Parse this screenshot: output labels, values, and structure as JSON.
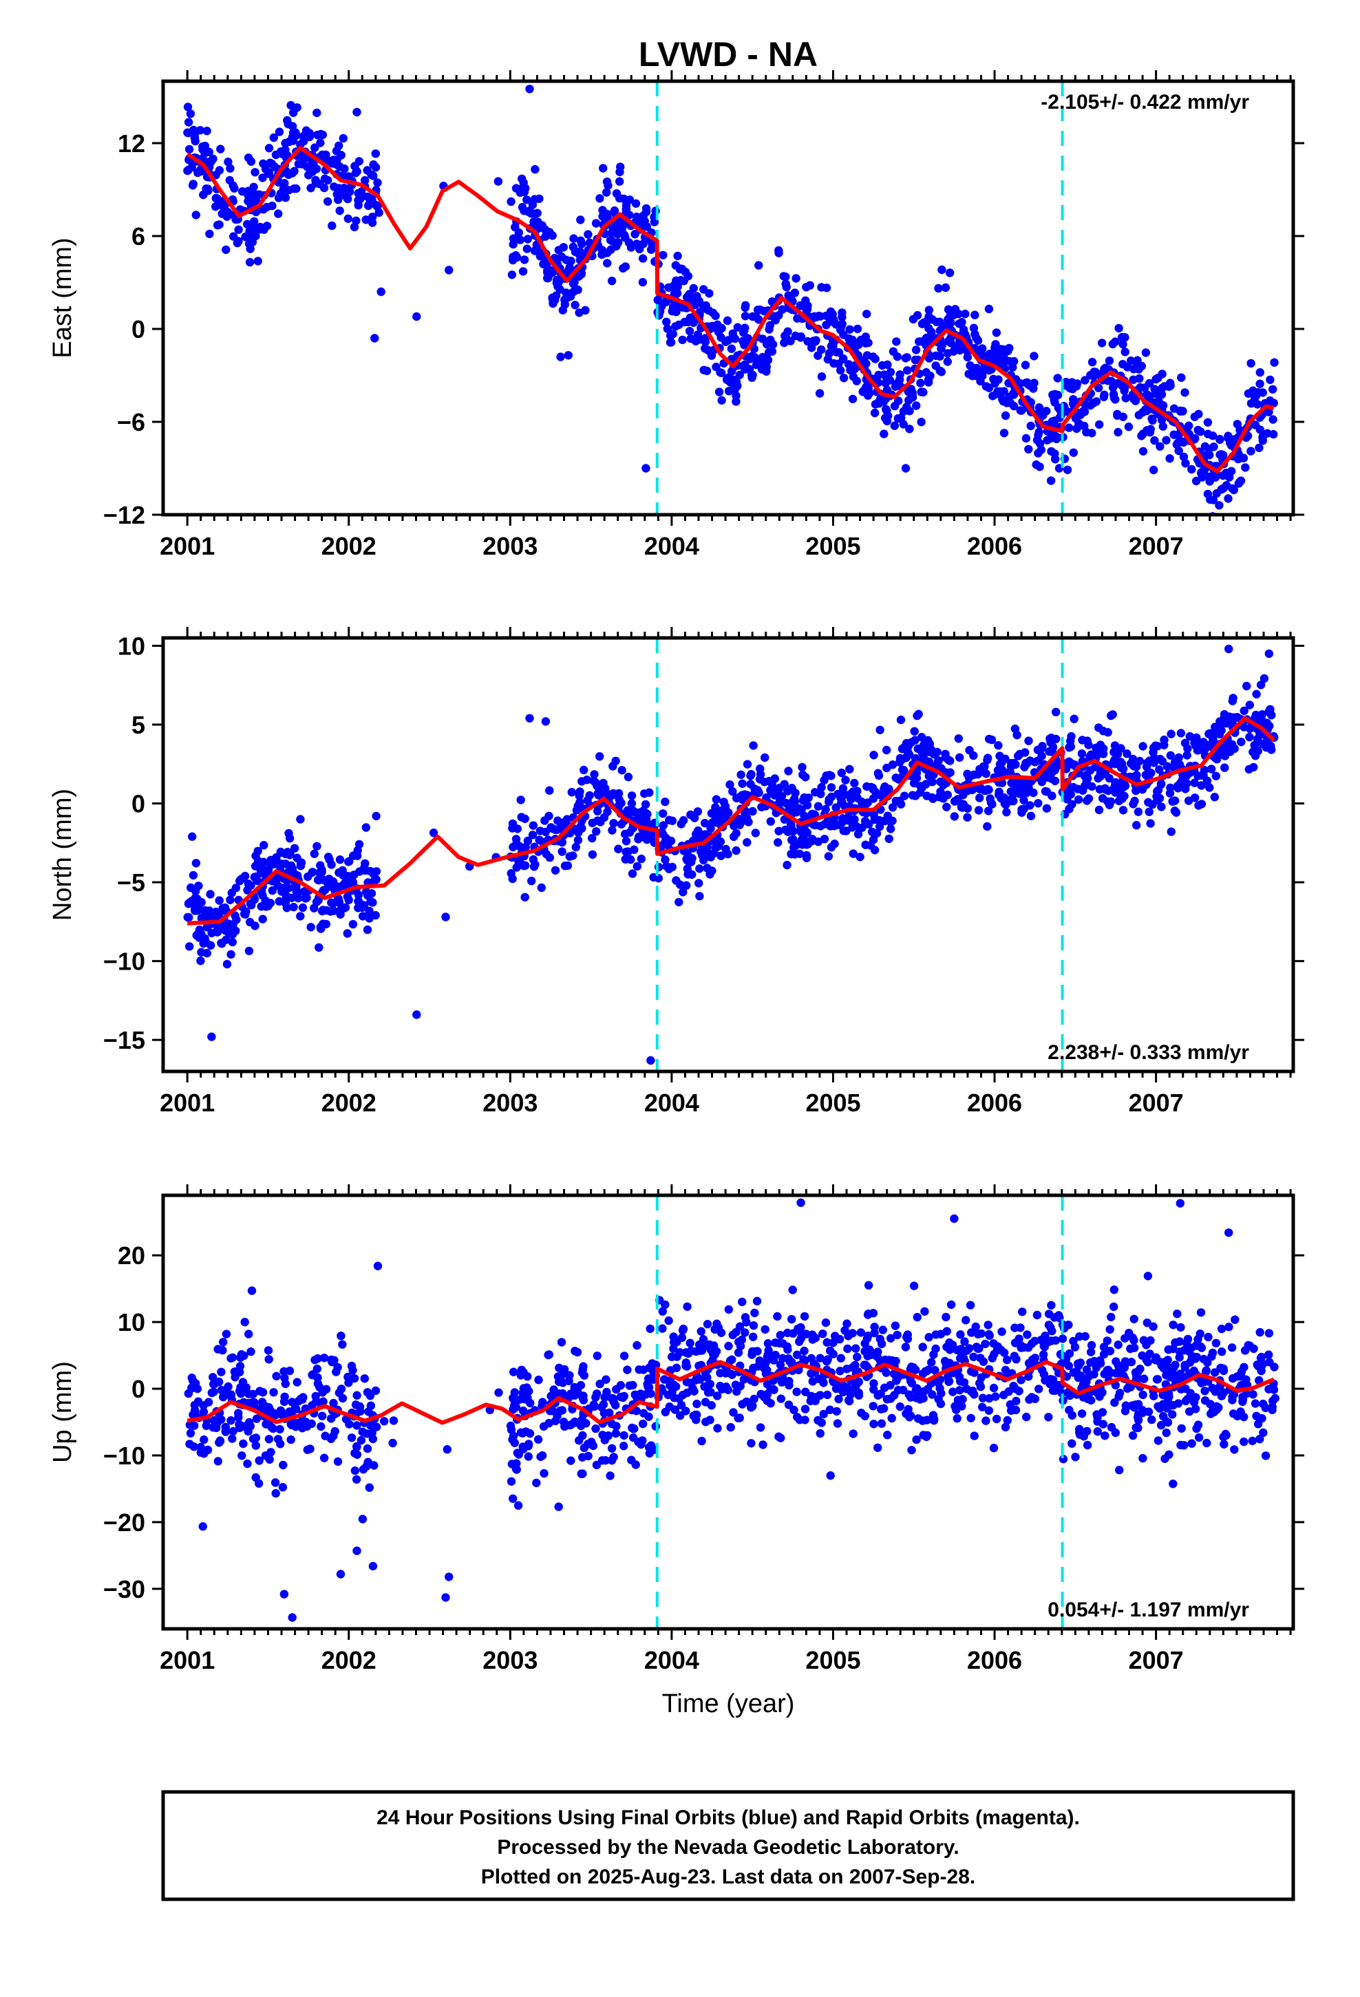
{
  "title": "LVWD - NA",
  "xlabel": "Time (year)",
  "caption": {
    "line1": "24 Hour Positions Using Final Orbits (blue) and Rapid Orbits (magenta).",
    "line2": "Processed by the Nevada Geodetic Laboratory.",
    "line3": "Plotted on 2025-Aug-23. Last data on 2007-Sep-28."
  },
  "colors": {
    "points": "#0000ff",
    "model": "#ff0000",
    "steps": "#00e5e5",
    "frame": "#000000"
  },
  "chart_data": [
    {
      "type": "scatter",
      "ylabel": "East (mm)",
      "rate_label": "-2.105+/- 0.422 mm/yr",
      "rate_placement": "top-right",
      "xlim": [
        2000.85,
        2007.85
      ],
      "ylim": [
        -12,
        16
      ],
      "xticks": [
        2001,
        2002,
        2003,
        2004,
        2005,
        2006,
        2007
      ],
      "yticks": [
        12,
        6,
        0,
        -6,
        -12
      ],
      "step_epochs": [
        2003.91,
        2006.42
      ],
      "model_knots": [
        [
          2001.0,
          11.3
        ],
        [
          2001.1,
          10.6
        ],
        [
          2001.2,
          9.0
        ],
        [
          2001.32,
          7.3
        ],
        [
          2001.45,
          8.0
        ],
        [
          2001.58,
          10.3
        ],
        [
          2001.7,
          11.7
        ],
        [
          2001.85,
          10.6
        ],
        [
          2001.95,
          9.6
        ],
        [
          2002.08,
          9.3
        ],
        [
          2002.18,
          8.6
        ],
        [
          2002.28,
          6.8
        ],
        [
          2002.38,
          5.2
        ],
        [
          2002.48,
          6.6
        ],
        [
          2002.58,
          8.9
        ],
        [
          2002.68,
          9.5
        ],
        [
          2002.8,
          8.6
        ],
        [
          2002.92,
          7.6
        ],
        [
          2003.05,
          7.0
        ],
        [
          2003.15,
          6.3
        ],
        [
          2003.25,
          4.4
        ],
        [
          2003.35,
          3.1
        ],
        [
          2003.47,
          4.5
        ],
        [
          2003.58,
          6.6
        ],
        [
          2003.68,
          7.4
        ],
        [
          2003.8,
          6.4
        ],
        [
          2003.909,
          5.7
        ]
      ],
      "model_knots_2": [
        [
          2003.911,
          2.3
        ],
        [
          2004.0,
          2.0
        ],
        [
          2004.1,
          1.6
        ],
        [
          2004.2,
          0.2
        ],
        [
          2004.3,
          -1.6
        ],
        [
          2004.38,
          -2.4
        ],
        [
          2004.48,
          -1.2
        ],
        [
          2004.58,
          0.7
        ],
        [
          2004.68,
          2.0
        ],
        [
          2004.8,
          1.0
        ],
        [
          2004.92,
          -0.1
        ],
        [
          2005.0,
          -0.4
        ],
        [
          2005.1,
          -1.3
        ],
        [
          2005.2,
          -2.9
        ],
        [
          2005.3,
          -4.2
        ],
        [
          2005.38,
          -4.4
        ],
        [
          2005.48,
          -3.4
        ],
        [
          2005.58,
          -1.4
        ],
        [
          2005.7,
          -0.1
        ],
        [
          2005.8,
          -0.6
        ],
        [
          2005.9,
          -2.0
        ],
        [
          2006.0,
          -2.4
        ],
        [
          2006.1,
          -3.2
        ],
        [
          2006.2,
          -4.9
        ],
        [
          2006.3,
          -6.3
        ],
        [
          2006.419,
          -6.6
        ]
      ],
      "model_knots_3": [
        [
          2006.421,
          -6.2
        ],
        [
          2006.5,
          -5.2
        ],
        [
          2006.6,
          -3.7
        ],
        [
          2006.72,
          -2.8
        ],
        [
          2006.82,
          -3.4
        ],
        [
          2006.92,
          -4.6
        ],
        [
          2007.02,
          -5.3
        ],
        [
          2007.12,
          -6.0
        ],
        [
          2007.22,
          -7.4
        ],
        [
          2007.3,
          -8.7
        ],
        [
          2007.38,
          -9.2
        ],
        [
          2007.48,
          -8.0
        ],
        [
          2007.58,
          -6.0
        ],
        [
          2007.68,
          -5.0
        ],
        [
          2007.73,
          -5.1
        ]
      ],
      "gaps": [
        [
          2002.18,
          2003.0
        ]
      ],
      "scatter_sigma": 1.4,
      "n_points": 1700,
      "outliers": [
        [
          2001.02,
          13.9
        ],
        [
          2001.68,
          14.3
        ],
        [
          2002.05,
          14.0
        ],
        [
          2002.16,
          -0.6
        ],
        [
          2002.2,
          2.4
        ],
        [
          2002.42,
          0.8
        ],
        [
          2002.62,
          3.8
        ],
        [
          2003.12,
          15.5
        ],
        [
          2003.36,
          -1.7
        ],
        [
          2003.84,
          -9.0
        ],
        [
          2005.45,
          -9.0
        ],
        [
          2006.35,
          -9.8
        ]
      ]
    },
    {
      "type": "scatter",
      "ylabel": "North (mm)",
      "rate_label": "2.238+/- 0.333 mm/yr",
      "rate_placement": "bottom-right",
      "xlim": [
        2000.85,
        2007.85
      ],
      "ylim": [
        -17,
        10.5
      ],
      "xticks": [
        2001,
        2002,
        2003,
        2004,
        2005,
        2006,
        2007
      ],
      "yticks": [
        10,
        5,
        0,
        -5,
        -10,
        -15
      ],
      "step_epochs": [
        2003.91,
        2006.42
      ],
      "model_knots": [
        [
          2001.0,
          -7.6
        ],
        [
          2001.2,
          -7.5
        ],
        [
          2001.35,
          -6.2
        ],
        [
          2001.55,
          -4.3
        ],
        [
          2001.7,
          -5.0
        ],
        [
          2001.85,
          -6.0
        ],
        [
          2002.05,
          -5.3
        ],
        [
          2002.22,
          -5.2
        ],
        [
          2002.38,
          -3.8
        ],
        [
          2002.55,
          -2.1
        ],
        [
          2002.68,
          -3.4
        ],
        [
          2002.8,
          -3.9
        ],
        [
          2002.98,
          -3.4
        ],
        [
          2003.15,
          -3.0
        ],
        [
          2003.3,
          -2.2
        ],
        [
          2003.45,
          -0.6
        ],
        [
          2003.58,
          0.3
        ],
        [
          2003.7,
          -0.9
        ],
        [
          2003.8,
          -1.5
        ],
        [
          2003.909,
          -1.7
        ]
      ],
      "model_knots_2": [
        [
          2003.911,
          -3.2
        ],
        [
          2004.05,
          -2.8
        ],
        [
          2004.2,
          -2.5
        ],
        [
          2004.35,
          -1.2
        ],
        [
          2004.5,
          0.4
        ],
        [
          2004.62,
          -0.1
        ],
        [
          2004.8,
          -1.3
        ],
        [
          2004.95,
          -0.8
        ],
        [
          2005.1,
          -0.4
        ],
        [
          2005.25,
          -0.4
        ],
        [
          2005.4,
          0.9
        ],
        [
          2005.52,
          2.6
        ],
        [
          2005.65,
          2.0
        ],
        [
          2005.78,
          1.0
        ],
        [
          2005.95,
          1.4
        ],
        [
          2006.1,
          1.7
        ],
        [
          2006.25,
          1.6
        ],
        [
          2006.419,
          3.5
        ]
      ],
      "model_knots_3": [
        [
          2006.421,
          0.9
        ],
        [
          2006.52,
          2.3
        ],
        [
          2006.62,
          2.7
        ],
        [
          2006.75,
          1.9
        ],
        [
          2006.88,
          1.2
        ],
        [
          2007.02,
          1.6
        ],
        [
          2007.15,
          2.1
        ],
        [
          2007.28,
          2.4
        ],
        [
          2007.4,
          3.9
        ],
        [
          2007.55,
          5.4
        ],
        [
          2007.65,
          4.8
        ],
        [
          2007.73,
          4.0
        ]
      ],
      "gaps": [
        [
          2002.18,
          2003.0
        ]
      ],
      "scatter_sigma": 1.3,
      "n_points": 1700,
      "outliers": [
        [
          2001.03,
          -2.1
        ],
        [
          2001.15,
          -14.8
        ],
        [
          2001.7,
          -1.0
        ],
        [
          2002.17,
          -0.8
        ],
        [
          2002.42,
          -13.4
        ],
        [
          2002.6,
          -7.2
        ],
        [
          2003.12,
          5.4
        ],
        [
          2003.22,
          5.2
        ],
        [
          2003.87,
          -16.3
        ],
        [
          2007.45,
          9.8
        ],
        [
          2007.7,
          9.5
        ],
        [
          2005.42,
          5.3
        ],
        [
          2006.38,
          5.8
        ]
      ]
    },
    {
      "type": "scatter",
      "ylabel": "Up (mm)",
      "rate_label": "0.054+/- 1.197 mm/yr",
      "rate_placement": "bottom-right",
      "xlim": [
        2000.85,
        2007.85
      ],
      "ylim": [
        -36,
        29
      ],
      "xticks": [
        2001,
        2002,
        2003,
        2004,
        2005,
        2006,
        2007
      ],
      "yticks": [
        20,
        10,
        0,
        -10,
        -20,
        -30
      ],
      "step_epochs": [
        2003.91,
        2006.42
      ],
      "model_knots": [
        [
          2001.0,
          -4.8
        ],
        [
          2001.12,
          -4.3
        ],
        [
          2001.27,
          -2.0
        ],
        [
          2001.42,
          -3.3
        ],
        [
          2001.55,
          -5.0
        ],
        [
          2001.7,
          -4.0
        ],
        [
          2001.85,
          -2.6
        ],
        [
          2001.98,
          -3.8
        ],
        [
          2002.1,
          -4.8
        ],
        [
          2002.2,
          -4.0
        ],
        [
          2002.33,
          -2.2
        ],
        [
          2002.45,
          -3.6
        ],
        [
          2002.58,
          -5.1
        ],
        [
          2002.72,
          -3.8
        ],
        [
          2002.85,
          -2.4
        ],
        [
          2002.95,
          -3.0
        ],
        [
          2003.05,
          -4.6
        ],
        [
          2003.2,
          -3.3
        ],
        [
          2003.3,
          -1.4
        ],
        [
          2003.45,
          -3.1
        ],
        [
          2003.55,
          -5.0
        ],
        [
          2003.7,
          -3.8
        ],
        [
          2003.8,
          -2.0
        ],
        [
          2003.909,
          -2.7
        ]
      ],
      "model_knots_2": [
        [
          2003.911,
          3.0
        ],
        [
          2004.05,
          1.4
        ],
        [
          2004.18,
          2.8
        ],
        [
          2004.3,
          4.0
        ],
        [
          2004.42,
          2.8
        ],
        [
          2004.55,
          1.2
        ],
        [
          2004.68,
          2.4
        ],
        [
          2004.8,
          3.6
        ],
        [
          2004.92,
          2.8
        ],
        [
          2005.05,
          1.2
        ],
        [
          2005.2,
          2.3
        ],
        [
          2005.32,
          3.6
        ],
        [
          2005.45,
          2.4
        ],
        [
          2005.58,
          1.2
        ],
        [
          2005.7,
          2.7
        ],
        [
          2005.82,
          3.7
        ],
        [
          2005.95,
          2.6
        ],
        [
          2006.08,
          1.4
        ],
        [
          2006.2,
          2.6
        ],
        [
          2006.32,
          4.0
        ],
        [
          2006.419,
          3.0
        ]
      ],
      "model_knots_3": [
        [
          2006.421,
          0.9
        ],
        [
          2006.52,
          -0.7
        ],
        [
          2006.65,
          0.5
        ],
        [
          2006.78,
          1.5
        ],
        [
          2006.9,
          0.6
        ],
        [
          2007.02,
          -0.3
        ],
        [
          2007.15,
          0.6
        ],
        [
          2007.27,
          2.1
        ],
        [
          2007.38,
          1.3
        ],
        [
          2007.5,
          -0.3
        ],
        [
          2007.6,
          0.1
        ],
        [
          2007.73,
          1.4
        ]
      ],
      "gaps": [
        [
          2002.18,
          2003.0
        ]
      ],
      "scatter_sigma": 4.5,
      "n_points": 1700,
      "outliers": [
        [
          2001.6,
          -30.8
        ],
        [
          2001.65,
          -34.3
        ],
        [
          2001.95,
          -27.8
        ],
        [
          2002.05,
          -24.3
        ],
        [
          2002.15,
          -26.6
        ],
        [
          2002.18,
          18.4
        ],
        [
          2002.62,
          -28.2
        ],
        [
          2002.6,
          -31.3
        ],
        [
          2001.4,
          14.7
        ],
        [
          2003.05,
          -17.5
        ],
        [
          2003.3,
          -17.7
        ],
        [
          2004.8,
          27.9
        ],
        [
          2005.75,
          25.5
        ],
        [
          2007.15,
          27.8
        ],
        [
          2007.45,
          23.4
        ],
        [
          2005.22,
          15.5
        ],
        [
          2006.95,
          16.9
        ]
      ]
    }
  ]
}
